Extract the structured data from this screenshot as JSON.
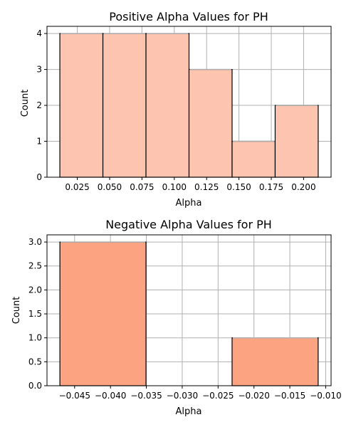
{
  "chart_data": [
    {
      "type": "bar",
      "title": "Positive Alpha Values for PH",
      "xlabel": "Alpha",
      "ylabel": "Count",
      "bin_edges": [
        0.0115,
        0.0448,
        0.0781,
        0.1114,
        0.1447,
        0.178,
        0.2113
      ],
      "values": [
        4,
        4,
        4,
        3,
        1,
        2
      ],
      "xlim": [
        0.00155,
        0.22125
      ],
      "ylim": [
        0,
        4.2
      ],
      "xticks": [
        0.025,
        0.05,
        0.075,
        0.1,
        0.125,
        0.15,
        0.175,
        0.2
      ],
      "xtick_labels": [
        "0.025",
        "0.050",
        "0.075",
        "0.100",
        "0.125",
        "0.150",
        "0.175",
        "0.200"
      ],
      "yticks": [
        0,
        1,
        2,
        3,
        4
      ],
      "ytick_labels": [
        "0",
        "1",
        "2",
        "3",
        "4"
      ],
      "grid": true,
      "bar_color": "#fdc5b0",
      "bar_edge_color": "#000000"
    },
    {
      "type": "bar",
      "title": "Negative Alpha Values for PH",
      "xlabel": "Alpha",
      "ylabel": "Count",
      "bin_edges": [
        -0.04705,
        -0.03505,
        -0.02305,
        -0.01105
      ],
      "values": [
        3,
        0,
        1
      ],
      "xlim": [
        -0.04885,
        -0.00925
      ],
      "ylim": [
        0,
        3.15
      ],
      "xticks": [
        -0.045,
        -0.04,
        -0.035,
        -0.03,
        -0.025,
        -0.02,
        -0.015,
        -0.01
      ],
      "xtick_labels": [
        "−0.045",
        "−0.040",
        "−0.035",
        "−0.030",
        "−0.025",
        "−0.020",
        "−0.015",
        "−0.010"
      ],
      "yticks": [
        0,
        0.5,
        1,
        1.5,
        2,
        2.5,
        3
      ],
      "ytick_labels": [
        "0.0",
        "0.5",
        "1.0",
        "1.5",
        "2.0",
        "2.5",
        "3.0"
      ],
      "grid": true,
      "bar_color": "#fca381",
      "bar_edge_color": "#000000"
    }
  ]
}
